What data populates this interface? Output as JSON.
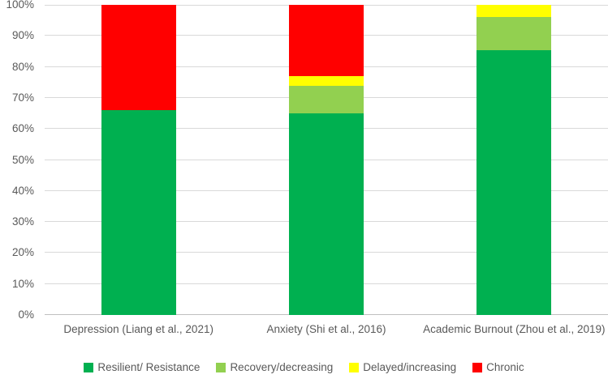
{
  "chart_data": {
    "type": "bar",
    "stacked": true,
    "percent_stacked": true,
    "title": "",
    "xlabel": "",
    "ylabel": "",
    "categories": [
      "Depression (Liang et al., 2021)",
      "Anxiety (Shi et al., 2016)",
      "Academic Burnout (Zhou et al., 2019)"
    ],
    "series": [
      {
        "name": "Resilient/ Resistance",
        "color": "#00B050",
        "values": [
          66,
          65,
          85.5
        ]
      },
      {
        "name": "Recovery/decreasing",
        "color": "#92D050",
        "values": [
          0,
          9,
          10.5
        ]
      },
      {
        "name": "Delayed/increasing",
        "color": "#FFFF00",
        "values": [
          0,
          3,
          4
        ]
      },
      {
        "name": "Chronic",
        "color": "#FF0000",
        "values": [
          34,
          23,
          0
        ]
      }
    ],
    "ylim": [
      0,
      100
    ],
    "ytick_step": 10,
    "ytick_suffix": "%",
    "grid": "horizontal",
    "legend_position": "bottom",
    "colors": {
      "grid": "#D9D9D9",
      "axis_line": "#BFBFBF",
      "text": "#595959",
      "background": "#FFFFFF"
    }
  }
}
